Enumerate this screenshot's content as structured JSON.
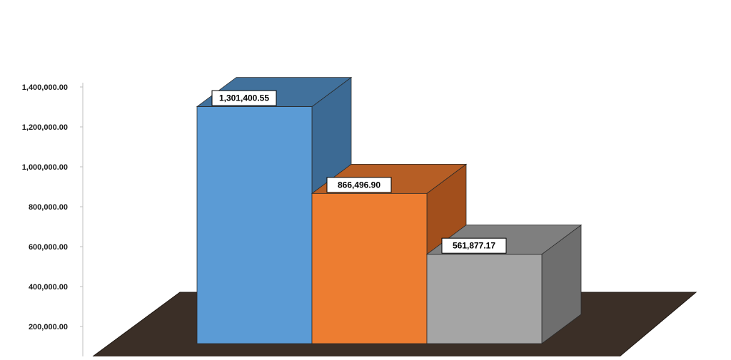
{
  "chart_data": {
    "type": "bar",
    "three_d": true,
    "categories": [
      "",
      "",
      ""
    ],
    "values": [
      1301400.55,
      866496.9,
      561877.17
    ],
    "data_labels": [
      "1,301,400.55",
      "866,496.90",
      "561,877.17"
    ],
    "y_ticks": [
      200000,
      400000,
      600000,
      800000,
      1000000,
      1200000,
      1400000
    ],
    "y_tick_labels": [
      "200,000.00",
      "400,000.00",
      "600,000.00",
      "800,000.00",
      "1,000,000.00",
      "1,200,000.00",
      "1,400,000.00"
    ],
    "ylim": [
      0,
      1400000
    ],
    "title": "",
    "xlabel": "",
    "ylabel": "",
    "legend": "none",
    "grid": false,
    "colors": {
      "bars": [
        {
          "front": "#5b9bd5",
          "top": "#41719c",
          "side": "#3c6a94"
        },
        {
          "front": "#ed7d31",
          "top": "#b65e25",
          "side": "#a24f1c"
        },
        {
          "front": "#a5a5a5",
          "top": "#7f7f7f",
          "side": "#6e6e6e"
        }
      ],
      "floor": "#3b2f27",
      "axis": "#bfbfbf"
    }
  }
}
